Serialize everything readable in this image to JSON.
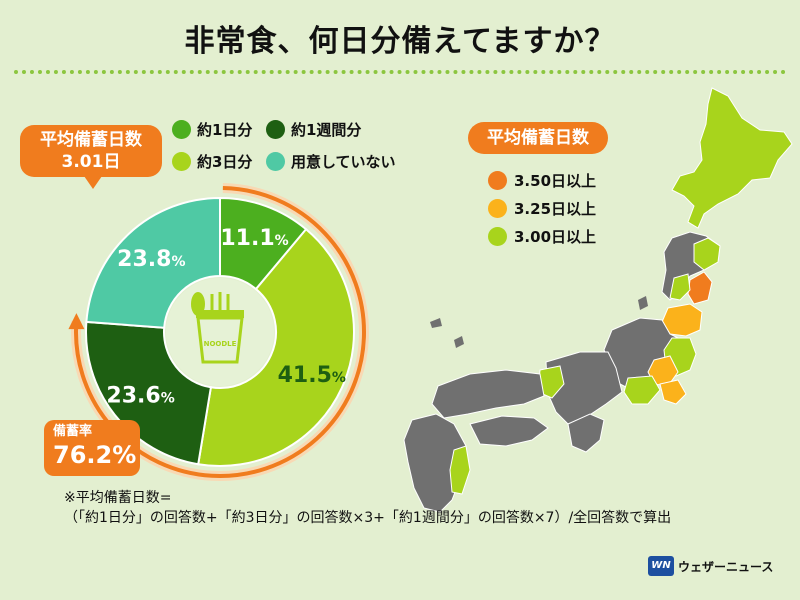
{
  "title": "非常食、何日分備えてますか？",
  "avg_badge": {
    "label": "平均備蓄日数",
    "value": "3.01日"
  },
  "legend": [
    {
      "label": "約1日分",
      "color": "#4caf1f"
    },
    {
      "label": "約1週間分",
      "color": "#1e5f12"
    },
    {
      "label": "約3日分",
      "color": "#a8d41c"
    },
    {
      "label": "用意していない",
      "color": "#4fc9a4"
    }
  ],
  "rate_badge": {
    "label": "備蓄率",
    "value": "76.2%"
  },
  "map_legend": {
    "title": "平均備蓄日数",
    "items": [
      {
        "label": "3.50日以上",
        "color": "#f07c1e"
      },
      {
        "label": "3.25日以上",
        "color": "#fbb21b"
      },
      {
        "label": "3.00日以上",
        "color": "#a8d41c"
      }
    ]
  },
  "center_icon_text": "NOODLE",
  "note": {
    "line1": "※平均備蓄日数=",
    "line2": "（「約1日分」の回答数+「約3日分」の回答数×3+「約1週間分」の回答数×7）/全回答数で算出"
  },
  "logo": {
    "mark": "WN",
    "text": "ウェザーニュース"
  },
  "colors": {
    "background": "#e3efd0",
    "accent": "#f07c1e",
    "map_gray": "#707070"
  },
  "chart_data": {
    "type": "pie",
    "categories": [
      "約1日分",
      "約3日分",
      "約1週間分",
      "用意していない"
    ],
    "values": [
      11.1,
      41.5,
      23.6,
      23.8
    ],
    "value_labels": [
      "11.1",
      "41.5",
      "23.6",
      "23.8"
    ],
    "unit": "%",
    "colors": [
      "#4caf1f",
      "#a8d41c",
      "#1e5f12",
      "#4fc9a4"
    ],
    "donut": true
  }
}
